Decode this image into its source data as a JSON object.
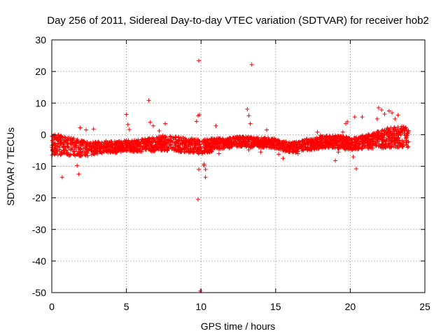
{
  "chart_data": {
    "type": "scatter",
    "title": "Day 256 of 2011, Sidereal Day-to-day VTEC variation (SDTVAR) for receiver hob2",
    "xlabel": "GPS time / hours",
    "ylabel": "SDTVAR / TECUs",
    "xlim": [
      0,
      25
    ],
    "ylim": [
      -50,
      30
    ],
    "xticks": [
      0,
      5,
      10,
      15,
      20,
      25
    ],
    "yticks": [
      -50,
      -40,
      -30,
      -20,
      -10,
      0,
      10,
      20,
      30
    ],
    "grid": true,
    "marker": "+",
    "series": [
      {
        "name": "hob2",
        "color": "#ff0000",
        "band": {
          "x_range": [
            0,
            23.9
          ],
          "center_profile": [
            [
              0.0,
              -3.0
            ],
            [
              0.5,
              -3.2
            ],
            [
              1.0,
              -3.5
            ],
            [
              1.5,
              -4.0
            ],
            [
              2.0,
              -4.3
            ],
            [
              2.5,
              -4.5
            ],
            [
              3.0,
              -4.2
            ],
            [
              3.5,
              -3.8
            ],
            [
              4.0,
              -4.0
            ],
            [
              4.5,
              -3.8
            ],
            [
              5.0,
              -3.6
            ],
            [
              5.5,
              -3.6
            ],
            [
              6.0,
              -3.3
            ],
            [
              6.5,
              -3.2
            ],
            [
              7.0,
              -3.0
            ],
            [
              7.5,
              -2.6
            ],
            [
              8.0,
              -2.9
            ],
            [
              8.5,
              -3.1
            ],
            [
              9.0,
              -3.3
            ],
            [
              9.5,
              -3.6
            ],
            [
              10.0,
              -3.7
            ],
            [
              10.5,
              -3.5
            ],
            [
              11.0,
              -3.0
            ],
            [
              11.5,
              -3.0
            ],
            [
              12.0,
              -2.5
            ],
            [
              12.5,
              -2.2
            ],
            [
              13.0,
              -2.2
            ],
            [
              13.5,
              -2.5
            ],
            [
              14.0,
              -2.5
            ],
            [
              14.5,
              -2.5
            ],
            [
              15.0,
              -2.8
            ],
            [
              15.5,
              -3.5
            ],
            [
              16.0,
              -4.0
            ],
            [
              16.5,
              -4.0
            ],
            [
              17.0,
              -3.2
            ],
            [
              17.5,
              -3.0
            ],
            [
              18.0,
              -2.5
            ],
            [
              18.5,
              -2.2
            ],
            [
              19.0,
              -2.2
            ],
            [
              19.5,
              -2.5
            ],
            [
              20.0,
              -3.0
            ],
            [
              20.5,
              -2.8
            ],
            [
              21.0,
              -2.2
            ],
            [
              21.5,
              -1.8
            ],
            [
              22.0,
              -1.5
            ],
            [
              22.5,
              -1.0
            ],
            [
              23.0,
              -0.8
            ],
            [
              23.5,
              -0.8
            ],
            [
              23.9,
              -1.0
            ]
          ],
          "half_width_profile": [
            [
              0.0,
              3.5
            ],
            [
              1.0,
              3.0
            ],
            [
              2.0,
              2.6
            ],
            [
              3.0,
              2.0
            ],
            [
              5.0,
              1.8
            ],
            [
              7.5,
              2.4
            ],
            [
              10.0,
              2.4
            ],
            [
              12.0,
              1.6
            ],
            [
              15.0,
              1.6
            ],
            [
              17.0,
              1.8
            ],
            [
              19.0,
              2.0
            ],
            [
              21.0,
              2.2
            ],
            [
              22.5,
              3.2
            ],
            [
              23.9,
              3.5
            ]
          ]
        },
        "outliers": [
          [
            0.7,
            -13.5
          ],
          [
            1.7,
            -9.8
          ],
          [
            1.8,
            -12.5
          ],
          [
            1.9,
            2.2
          ],
          [
            2.3,
            1.5
          ],
          [
            2.8,
            1.8
          ],
          [
            5.0,
            6.4
          ],
          [
            5.1,
            3.2
          ],
          [
            5.2,
            1.6
          ],
          [
            6.5,
            10.8
          ],
          [
            6.6,
            3.9
          ],
          [
            6.8,
            2.8
          ],
          [
            7.2,
            1.2
          ],
          [
            7.6,
            3.5
          ],
          [
            9.7,
            4.2
          ],
          [
            9.8,
            6.0
          ],
          [
            9.85,
            23.4
          ],
          [
            9.85,
            -11.0
          ],
          [
            9.8,
            -20.5
          ],
          [
            9.9,
            6.3
          ],
          [
            9.95,
            -49.5
          ],
          [
            10.2,
            -9.3
          ],
          [
            10.3,
            -11.0
          ],
          [
            10.3,
            -13.5
          ],
          [
            10.2,
            -9.8
          ],
          [
            11.0,
            2.8
          ],
          [
            11.2,
            -6.0
          ],
          [
            13.1,
            8.1
          ],
          [
            13.2,
            6.0
          ],
          [
            13.3,
            3.5
          ],
          [
            13.4,
            22.2
          ],
          [
            13.2,
            -4.8
          ],
          [
            14.0,
            -5.5
          ],
          [
            14.4,
            1.5
          ],
          [
            15.2,
            -6.2
          ],
          [
            15.5,
            -7.5
          ],
          [
            16.5,
            -6.0
          ],
          [
            17.8,
            0.8
          ],
          [
            18.0,
            -0.2
          ],
          [
            19.0,
            -8.2
          ],
          [
            19.2,
            -5.5
          ],
          [
            19.5,
            0.8
          ],
          [
            19.7,
            3.5
          ],
          [
            19.8,
            4.1
          ],
          [
            20.3,
            5.6
          ],
          [
            20.4,
            -10.8
          ],
          [
            20.8,
            5.6
          ],
          [
            20.2,
            -7.0
          ],
          [
            21.9,
            8.5
          ],
          [
            22.1,
            7.8
          ],
          [
            22.3,
            6.5
          ],
          [
            22.6,
            7.5
          ],
          [
            22.8,
            6.9
          ],
          [
            23.0,
            5.0
          ],
          [
            23.2,
            6.2
          ],
          [
            21.8,
            5.0
          ]
        ]
      }
    ]
  }
}
